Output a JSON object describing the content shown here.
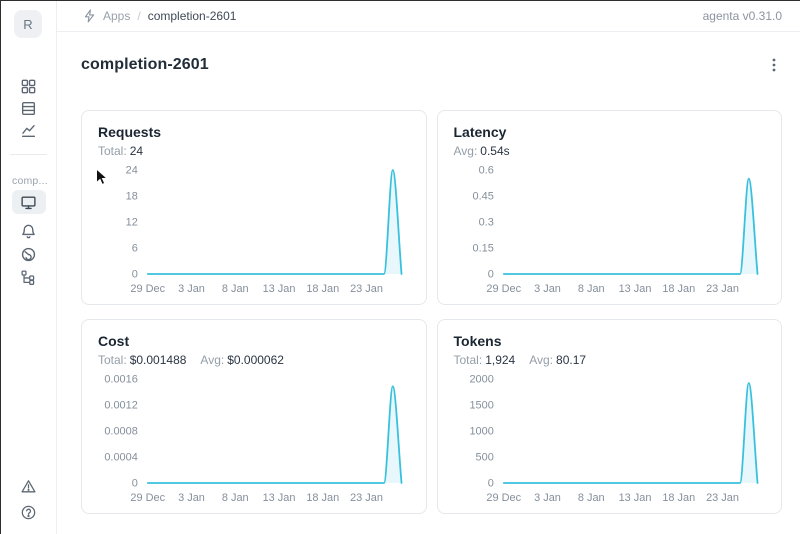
{
  "logo": {
    "letter": "R"
  },
  "header": {
    "breadcrumb": {
      "apps": "Apps",
      "separator": "/",
      "current": "completion-2601"
    },
    "version": "agenta v0.31.0"
  },
  "sidebar": {
    "project_label": "comp..."
  },
  "page": {
    "title": "completion-2601"
  },
  "chart_data": {
    "type": "line",
    "line_color": "#38C1DD",
    "area_color": "rgba(56,193,221,0.12)",
    "x_domain_days": [
      0,
      29
    ],
    "x_tick_days": [
      0,
      5,
      10,
      15,
      20,
      25
    ],
    "x_tick_labels": [
      "29 Dec",
      "3 Jan",
      "8 Jan",
      "13 Jan",
      "18 Jan",
      "23 Jan"
    ],
    "legend": "none",
    "grid": "off",
    "charts": [
      {
        "id": "requests",
        "title": "Requests",
        "stats": [
          {
            "label": "Total:",
            "value": "24"
          }
        ],
        "ymax": 24,
        "y_ticks": [
          0,
          6,
          12,
          18,
          24
        ],
        "y_tick_labels": [
          "0",
          "6",
          "12",
          "18",
          "24"
        ],
        "values": [
          0,
          0,
          0,
          0,
          0,
          0,
          0,
          0,
          0,
          0,
          0,
          0,
          0,
          0,
          0,
          0,
          0,
          0,
          0,
          0,
          0,
          0,
          0,
          0,
          0,
          0,
          0,
          0,
          24,
          0
        ]
      },
      {
        "id": "latency",
        "title": "Latency",
        "stats": [
          {
            "label": "Avg:",
            "value": "0.54s"
          }
        ],
        "ymax": 0.6,
        "y_ticks": [
          0,
          0.15,
          0.3,
          0.45,
          0.6
        ],
        "y_tick_labels": [
          "0",
          "0.15",
          "0.3",
          "0.45",
          "0.6"
        ],
        "values": [
          0,
          0,
          0,
          0,
          0,
          0,
          0,
          0,
          0,
          0,
          0,
          0,
          0,
          0,
          0,
          0,
          0,
          0,
          0,
          0,
          0,
          0,
          0,
          0,
          0,
          0,
          0,
          0,
          0.55,
          0
        ]
      },
      {
        "id": "cost",
        "title": "Cost",
        "stats": [
          {
            "label": "Total:",
            "value": "$0.001488"
          },
          {
            "label": "Avg:",
            "value": "$0.000062"
          }
        ],
        "ymax": 0.0016,
        "y_ticks": [
          0,
          0.0004,
          0.0008,
          0.0012,
          0.0016
        ],
        "y_tick_labels": [
          "0",
          "0.0004",
          "0.0008",
          "0.0012",
          "0.0016"
        ],
        "values": [
          0,
          0,
          0,
          0,
          0,
          0,
          0,
          0,
          0,
          0,
          0,
          0,
          0,
          0,
          0,
          0,
          0,
          0,
          0,
          0,
          0,
          0,
          0,
          0,
          0,
          0,
          0,
          0,
          0.001488,
          0
        ]
      },
      {
        "id": "tokens",
        "title": "Tokens",
        "stats": [
          {
            "label": "Total:",
            "value": "1,924"
          },
          {
            "label": "Avg:",
            "value": "80.17"
          }
        ],
        "ymax": 2000,
        "y_ticks": [
          0,
          500,
          1000,
          1500,
          2000
        ],
        "y_tick_labels": [
          "0",
          "500",
          "1000",
          "1500",
          "2000"
        ],
        "values": [
          0,
          0,
          0,
          0,
          0,
          0,
          0,
          0,
          0,
          0,
          0,
          0,
          0,
          0,
          0,
          0,
          0,
          0,
          0,
          0,
          0,
          0,
          0,
          0,
          0,
          0,
          0,
          0,
          1924,
          0
        ]
      }
    ]
  }
}
